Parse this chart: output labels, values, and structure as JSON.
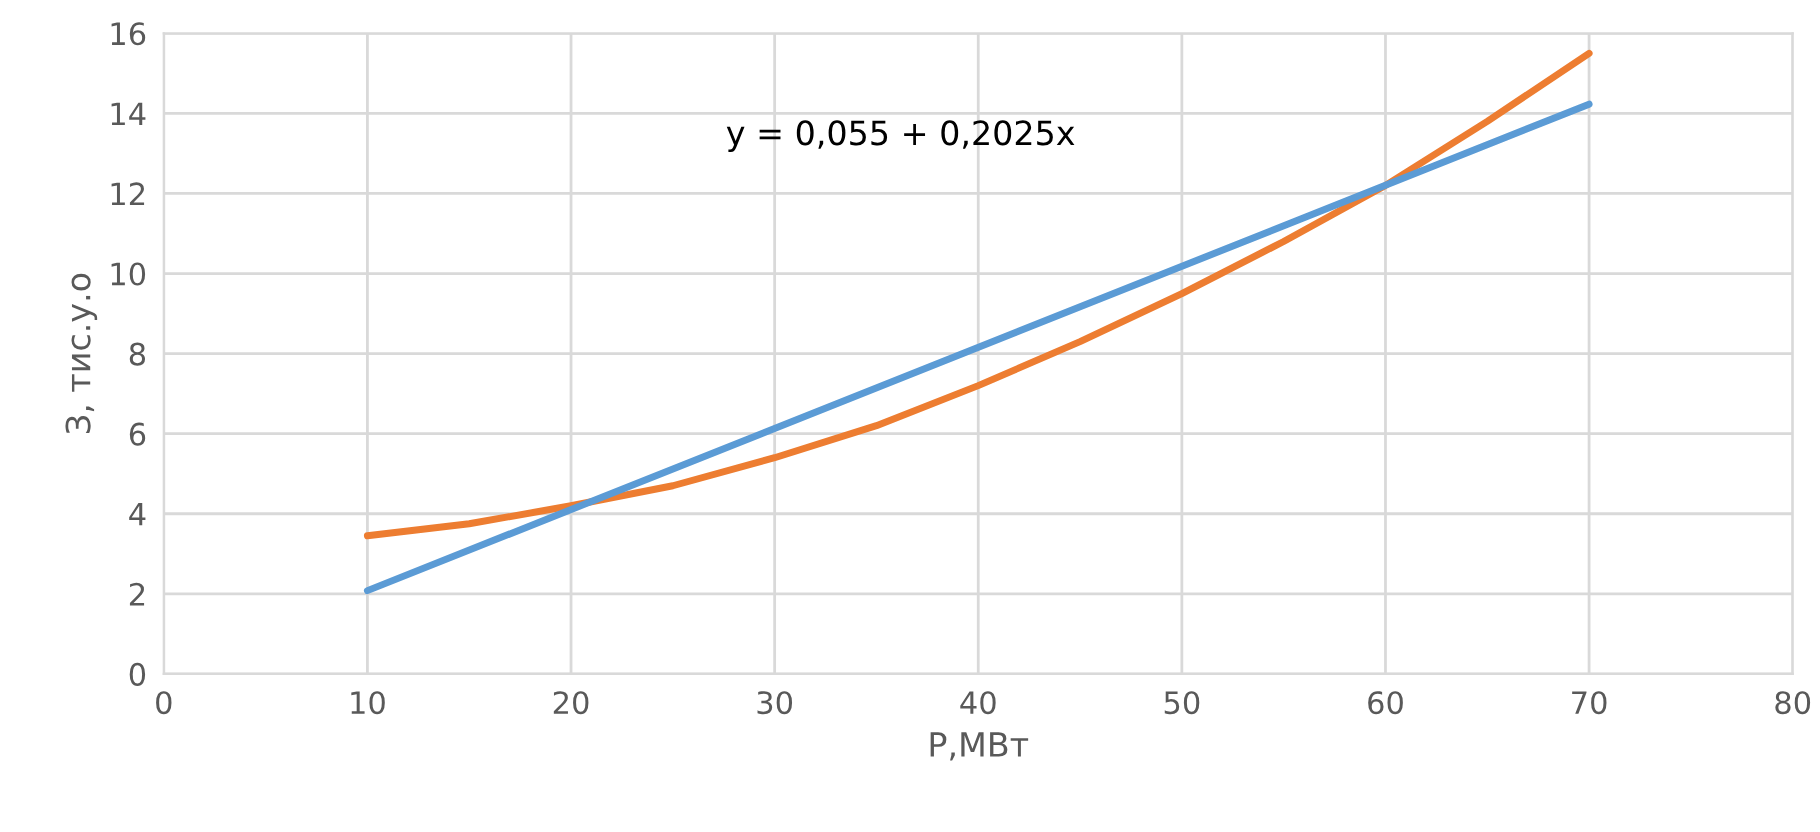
{
  "chart_data": {
    "type": "line",
    "xlabel": "P,МВт",
    "ylabel": "З, тис.у.о",
    "annotations": [
      "y = 0,055 + 0,2025x"
    ],
    "series": [
      {
        "color": "#ed7d31",
        "x": [
          10,
          15,
          20,
          25,
          30,
          35,
          40,
          45,
          50,
          55,
          60,
          65,
          70
        ],
        "values": [
          3.45,
          3.75,
          4.2,
          4.7,
          5.4,
          6.2,
          7.2,
          8.3,
          9.5,
          10.8,
          12.2,
          13.8,
          15.5
        ]
      },
      {
        "color": "#5b9bd5",
        "x": [
          10,
          70
        ],
        "values": [
          2.08,
          14.23
        ]
      }
    ],
    "xlim": [
      0,
      80
    ],
    "xticks": [
      0,
      10,
      20,
      30,
      40,
      50,
      60,
      70,
      80
    ],
    "ylim": [
      0,
      16
    ],
    "yticks": [
      0,
      2,
      4,
      6,
      8,
      10,
      12,
      14,
      16
    ],
    "grid": true,
    "legend": false,
    "marker": "none",
    "line_style": "solid"
  }
}
